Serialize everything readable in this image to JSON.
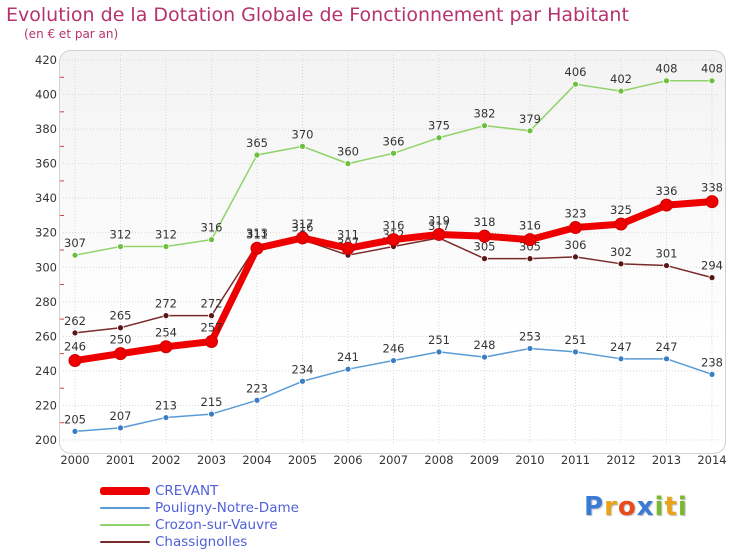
{
  "header": {
    "title": "Evolution de la Dotation Globale de Fonctionnement par Habitant",
    "subtitle": "(en € et par an)"
  },
  "logo": {
    "text": "Proxiti",
    "letter_colors": [
      "#3a7bd5",
      "#e8a317",
      "#e84c1b",
      "#3a7bd5",
      "#7cb82f",
      "#e8a317",
      "#7cb82f"
    ]
  },
  "chart_data": {
    "type": "line",
    "x": [
      "2000",
      "2001",
      "2002",
      "2003",
      "2004",
      "2005",
      "2006",
      "2007",
      "2008",
      "2009",
      "2010",
      "2011",
      "2012",
      "2013",
      "2014"
    ],
    "ylim": [
      200,
      420
    ],
    "yticks": [
      200,
      220,
      240,
      260,
      280,
      300,
      320,
      340,
      360,
      380,
      400,
      420
    ],
    "grid": true,
    "legend_position": "bottom-left",
    "series": [
      {
        "name": "Chassignolles",
        "color": "#7a2a2a",
        "point_color": "#5a1515",
        "values": [
          262,
          265,
          272,
          272,
          313,
          316,
          307,
          312,
          317,
          305,
          305,
          306,
          302,
          301,
          294
        ]
      },
      {
        "name": "Pouligny-Notre-Dame",
        "color": "#5b9bd5",
        "point_color": "#3a7fc4",
        "values": [
          205,
          207,
          213,
          215,
          223,
          234,
          241,
          246,
          251,
          248,
          253,
          251,
          247,
          247,
          238
        ]
      },
      {
        "name": "Crozon-sur-Vauvre",
        "color": "#8fd36a",
        "point_color": "#6cbf3f",
        "values": [
          307,
          312,
          312,
          316,
          365,
          370,
          360,
          366,
          375,
          382,
          379,
          406,
          402,
          408,
          408
        ]
      },
      {
        "name": "CREVANT",
        "color": "#ee0000",
        "point_color": "#ee0000",
        "values": [
          246,
          250,
          254,
          257,
          311,
          317,
          311,
          316,
          319,
          318,
          316,
          323,
          325,
          336,
          338
        ]
      }
    ],
    "legend_order": [
      "CREVANT",
      "Pouligny-Notre-Dame",
      "Crozon-sur-Vauvre",
      "Chassignolles"
    ]
  }
}
